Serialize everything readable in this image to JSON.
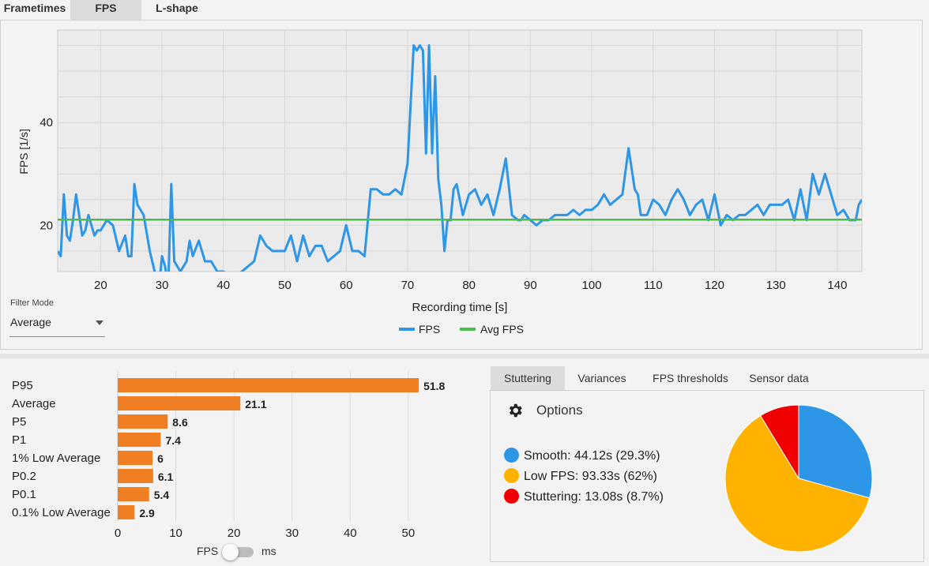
{
  "top_tabs": [
    {
      "label": "Frametimes",
      "active": false
    },
    {
      "label": "FPS",
      "active": true
    },
    {
      "label": "L-shape",
      "active": false
    }
  ],
  "filter": {
    "label": "Filter Mode",
    "value": "Average"
  },
  "chart_data": [
    {
      "type": "line",
      "xlabel": "Recording time [s]",
      "ylabel": "FPS [1/s]",
      "xlim": [
        13,
        144
      ],
      "ylim": [
        11,
        58
      ],
      "xticks": [
        20,
        30,
        40,
        50,
        60,
        70,
        80,
        90,
        100,
        110,
        120,
        130,
        140
      ],
      "yticks": [
        20,
        40
      ],
      "grid": true,
      "legend_position": "bottom-center",
      "series": [
        {
          "name": "FPS",
          "color": "#2d96e6",
          "x": [
            13,
            13.5,
            14,
            14.5,
            15,
            15.5,
            16,
            17,
            17.5,
            18,
            19,
            19.5,
            20,
            21,
            22,
            23,
            24,
            24.5,
            25,
            25.5,
            26,
            27,
            28,
            29,
            29.5,
            30,
            30.5,
            31,
            31.5,
            32,
            33,
            34,
            34.5,
            35,
            36,
            37,
            38,
            39,
            40,
            41,
            42,
            43,
            44,
            45,
            46,
            47,
            48,
            49,
            50,
            51,
            52,
            53,
            54,
            55,
            56,
            57,
            58,
            59,
            60,
            61,
            62,
            63,
            64,
            65,
            66,
            67,
            68,
            69,
            70,
            71,
            71.5,
            72,
            72.5,
            73,
            73.5,
            74,
            74.5,
            75,
            75.5,
            76,
            76.5,
            77,
            77.5,
            78,
            79,
            80,
            81,
            82,
            83,
            84,
            85,
            86,
            87,
            88,
            88.5,
            89,
            90,
            91,
            92,
            93,
            94,
            95,
            96,
            97,
            98,
            99,
            100,
            101,
            102,
            103,
            104,
            105,
            106,
            107,
            107.5,
            108,
            109,
            110,
            111,
            112,
            113,
            114,
            115,
            116,
            117,
            118,
            119,
            120,
            121,
            122,
            123,
            124,
            125,
            126,
            127,
            128,
            129,
            130,
            131,
            132,
            133,
            134,
            135,
            136,
            137,
            138,
            139,
            140,
            141,
            142,
            143,
            143.5,
            144
          ],
          "values": [
            15,
            14,
            26,
            18,
            17,
            21,
            26,
            18,
            19,
            22,
            18,
            19,
            19,
            21,
            20,
            15,
            18,
            14,
            14,
            28,
            24,
            22,
            15,
            10,
            8,
            14,
            12,
            8,
            28,
            13,
            11,
            13,
            17,
            14,
            17,
            13,
            13,
            11,
            11,
            10,
            10,
            11,
            12,
            13,
            18,
            16,
            15,
            15,
            15,
            18,
            13,
            18,
            14,
            16,
            16,
            13,
            14,
            15,
            20,
            15,
            15,
            14,
            27,
            27,
            26,
            26,
            27,
            26,
            32,
            55,
            54,
            55,
            54,
            34,
            55,
            34,
            49,
            29,
            24,
            15,
            21,
            21,
            27,
            28,
            22,
            26,
            27,
            24,
            26,
            22,
            27,
            33,
            22,
            21,
            21,
            22,
            21,
            20,
            21,
            21,
            22,
            22,
            22,
            23,
            22,
            23,
            23,
            24,
            26,
            24,
            25,
            26,
            35,
            27,
            26,
            22,
            22,
            25,
            24,
            22,
            25,
            27,
            25,
            22,
            24,
            25,
            21,
            26,
            20,
            22,
            21,
            22,
            22,
            23,
            24,
            22,
            24,
            24,
            24,
            25,
            21,
            27,
            21,
            30,
            26,
            30,
            26,
            22,
            23,
            21,
            21,
            24,
            25
          ]
        },
        {
          "name": "Avg FPS",
          "color": "#4cbd4c",
          "x": [
            13,
            144
          ],
          "values": [
            21.1,
            21.1
          ]
        }
      ]
    },
    {
      "type": "bar",
      "orientation": "horizontal",
      "categories": [
        "P95",
        "Average",
        "P5",
        "P1",
        "1% Low Average",
        "P0.2",
        "P0.1",
        "0.1% Low Average"
      ],
      "values": [
        51.8,
        21.1,
        8.6,
        7.4,
        6,
        6.1,
        5.4,
        2.9
      ],
      "value_labels": [
        "51.8",
        "21.1",
        "8.6",
        "7.4",
        "6",
        "6.1",
        "5.4",
        "2.9"
      ],
      "xlim": [
        0,
        56
      ],
      "xticks": [
        0,
        10,
        20,
        30,
        40,
        50
      ],
      "xlabel": "",
      "color": "#f07f23"
    },
    {
      "type": "pie",
      "series": [
        {
          "label": "Smooth",
          "text": "Smooth:  44.12s (29.3%)",
          "value": 29.3,
          "color": "#2d96e6"
        },
        {
          "label": "Low FPS",
          "text": "Low FPS:  93.33s (62%)",
          "value": 62,
          "color": "#ffb300"
        },
        {
          "label": "Stuttering",
          "text": "Stuttering:  13.08s (8.7%)",
          "value": 8.7,
          "color": "#f00000"
        }
      ]
    }
  ],
  "unit_toggle": {
    "left_label": "FPS",
    "right_label": "ms",
    "selected": "FPS"
  },
  "bottom_tabs": [
    {
      "label": "Stuttering",
      "active": true
    },
    {
      "label": "Variances",
      "active": false
    },
    {
      "label": "FPS thresholds",
      "active": false
    },
    {
      "label": "Sensor data",
      "active": false
    }
  ],
  "options": {
    "label": "Options",
    "icon": "gear-icon"
  }
}
